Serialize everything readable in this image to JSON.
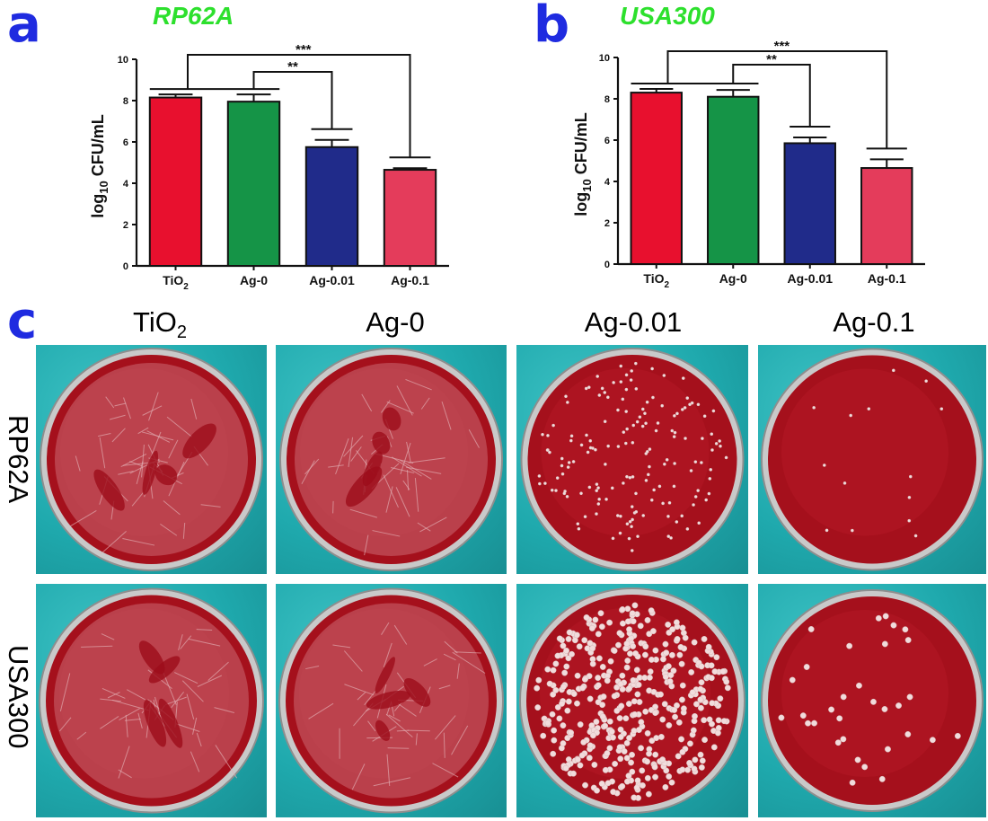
{
  "panels": {
    "a": {
      "letter": "a",
      "title": "RP62A"
    },
    "b": {
      "letter": "b",
      "title": "USA300"
    },
    "c": {
      "letter": "c"
    }
  },
  "chart_data": [
    {
      "type": "bar",
      "title": "RP62A",
      "categories": [
        "TiO2",
        "Ag-0",
        "Ag-0.01",
        "Ag-0.1"
      ],
      "values": [
        8.15,
        7.95,
        5.75,
        4.65
      ],
      "errors": [
        0.15,
        0.35,
        0.35,
        0.08
      ],
      "ylabel": "log10 CFU/mL",
      "ylim": [
        0,
        10
      ],
      "yticks": [
        0,
        2,
        4,
        6,
        8,
        10
      ],
      "colors": [
        "#e8102e",
        "#159447",
        "#202b8a",
        "#e43c5b"
      ],
      "significance": [
        {
          "label": "**",
          "from": "Ag-0",
          "to": "Ag-0.01"
        },
        {
          "label": "***",
          "from": "TiO2",
          "to": "Ag-0.1"
        }
      ]
    },
    {
      "type": "bar",
      "title": "USA300",
      "categories": [
        "TiO2",
        "Ag-0",
        "Ag-0.01",
        "Ag-0.1"
      ],
      "values": [
        8.3,
        8.1,
        5.85,
        4.65
      ],
      "errors": [
        0.18,
        0.33,
        0.28,
        0.42
      ],
      "ylabel": "log10 CFU/mL",
      "ylim": [
        0,
        10
      ],
      "yticks": [
        0,
        2,
        4,
        6,
        8,
        10
      ],
      "colors": [
        "#e8102e",
        "#159447",
        "#202b8a",
        "#e43c5b"
      ],
      "significance": [
        {
          "label": "**",
          "from": "Ag-0",
          "to": "Ag-0.01"
        },
        {
          "label": "***",
          "from": "TiO2",
          "to": "Ag-0.1"
        }
      ]
    }
  ],
  "plates": {
    "columns": [
      {
        "base": "TiO",
        "sub": "2"
      },
      {
        "base": "Ag-0",
        "sub": ""
      },
      {
        "base": "Ag-0.01",
        "sub": ""
      },
      {
        "base": "Ag-0.1",
        "sub": ""
      }
    ],
    "rows": [
      "RP62A",
      "USA300"
    ]
  }
}
